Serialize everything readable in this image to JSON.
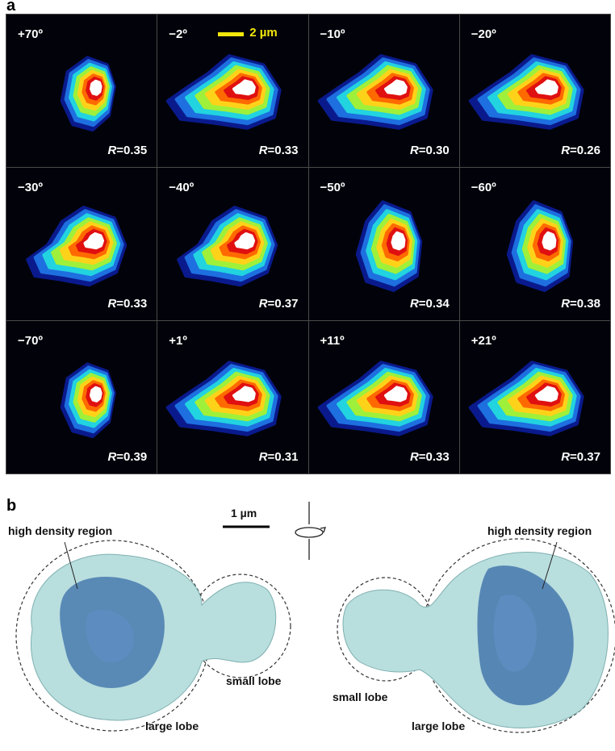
{
  "panel_a_label": "a",
  "panel_b_label": "b",
  "scale_a": "2 µm",
  "scale_b": "1 µm",
  "tiles": [
    {
      "angle": "+70º",
      "r_label": "R",
      "r_value": "=0.35",
      "shape": "egg"
    },
    {
      "angle": "−2º",
      "r_label": "R",
      "r_value": "=0.33",
      "shape": "wide"
    },
    {
      "angle": "−10º",
      "r_label": "R",
      "r_value": "=0.30",
      "shape": "wide"
    },
    {
      "angle": "−20º",
      "r_label": "R",
      "r_value": "=0.26",
      "shape": "wide"
    },
    {
      "angle": "−30º",
      "r_label": "R",
      "r_value": "=0.33",
      "shape": "mid"
    },
    {
      "angle": "−40º",
      "r_label": "R",
      "r_value": "=0.37",
      "shape": "mid"
    },
    {
      "angle": "−50º",
      "r_label": "R",
      "r_value": "=0.34",
      "shape": "tall"
    },
    {
      "angle": "−60º",
      "r_label": "R",
      "r_value": "=0.38",
      "shape": "tall"
    },
    {
      "angle": "−70º",
      "r_label": "R",
      "r_value": "=0.39",
      "shape": "egg"
    },
    {
      "angle": "+1º",
      "r_label": "R",
      "r_value": "=0.31",
      "shape": "wide"
    },
    {
      "angle": "+11º",
      "r_label": "R",
      "r_value": "=0.33",
      "shape": "wide"
    },
    {
      "angle": "+21º",
      "r_label": "R",
      "r_value": "=0.37",
      "shape": "wide"
    }
  ],
  "labels_b": {
    "hdr_left": "high density region",
    "hdr_right": "high density region",
    "small_left": "small lobe",
    "small_right": "small lobe",
    "large_left": "large lobe",
    "large_right": "large lobe"
  },
  "colors": {
    "heat": [
      "#0a1a8c",
      "#1e6fe0",
      "#22d3e0",
      "#9ff03a",
      "#ffd21a",
      "#ff6a00",
      "#e01010",
      "#ffffff"
    ],
    "scalebar": "#f2e70a",
    "surface": "#b9dede",
    "dense": "#3a6ea8"
  },
  "icons": {
    "rotate": "rotate-axis-icon"
  }
}
